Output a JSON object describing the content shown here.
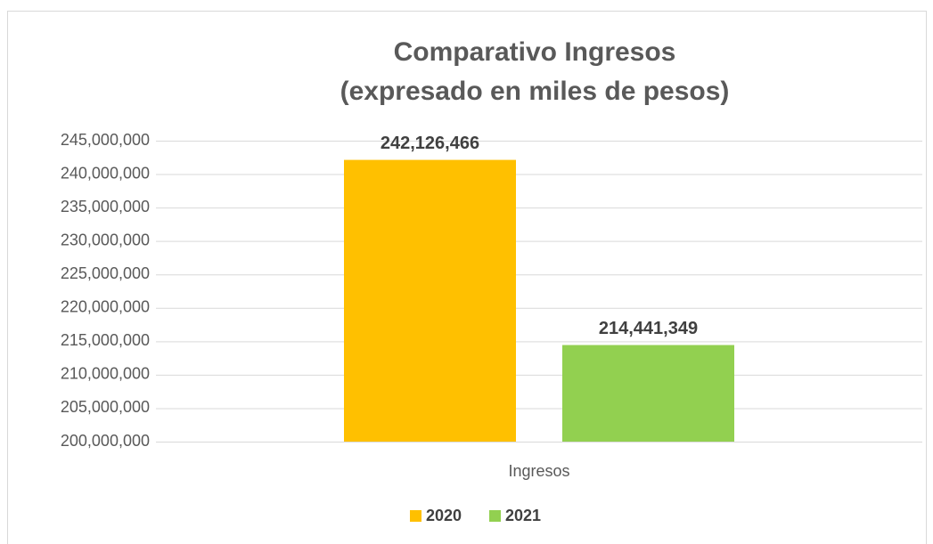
{
  "chart_data": {
    "type": "bar",
    "title": [
      "Comparativo Ingresos",
      "(expresado en miles de  pesos)"
    ],
    "categories": [
      "Ingresos"
    ],
    "series": [
      {
        "name": "2020",
        "color": "#FFC000",
        "values": [
          242126466
        ],
        "value_labels": [
          "242,126,466"
        ]
      },
      {
        "name": "2021",
        "color": "#92D050",
        "values": [
          214441349
        ],
        "value_labels": [
          "214,441,349"
        ]
      }
    ],
    "ylim": [
      200000000,
      245000000
    ],
    "yticks": [
      {
        "value": 200000000,
        "label": "200,000,000"
      },
      {
        "value": 205000000,
        "label": "205,000,000"
      },
      {
        "value": 210000000,
        "label": "210,000,000"
      },
      {
        "value": 215000000,
        "label": "215,000,000"
      },
      {
        "value": 220000000,
        "label": "220,000,000"
      },
      {
        "value": 225000000,
        "label": "225,000,000"
      },
      {
        "value": 230000000,
        "label": "230,000,000"
      },
      {
        "value": 235000000,
        "label": "235,000,000"
      },
      {
        "value": 240000000,
        "label": "240,000,000"
      },
      {
        "value": 245000000,
        "label": "245,000,000"
      }
    ],
    "grid": true,
    "legend": "bottom"
  }
}
